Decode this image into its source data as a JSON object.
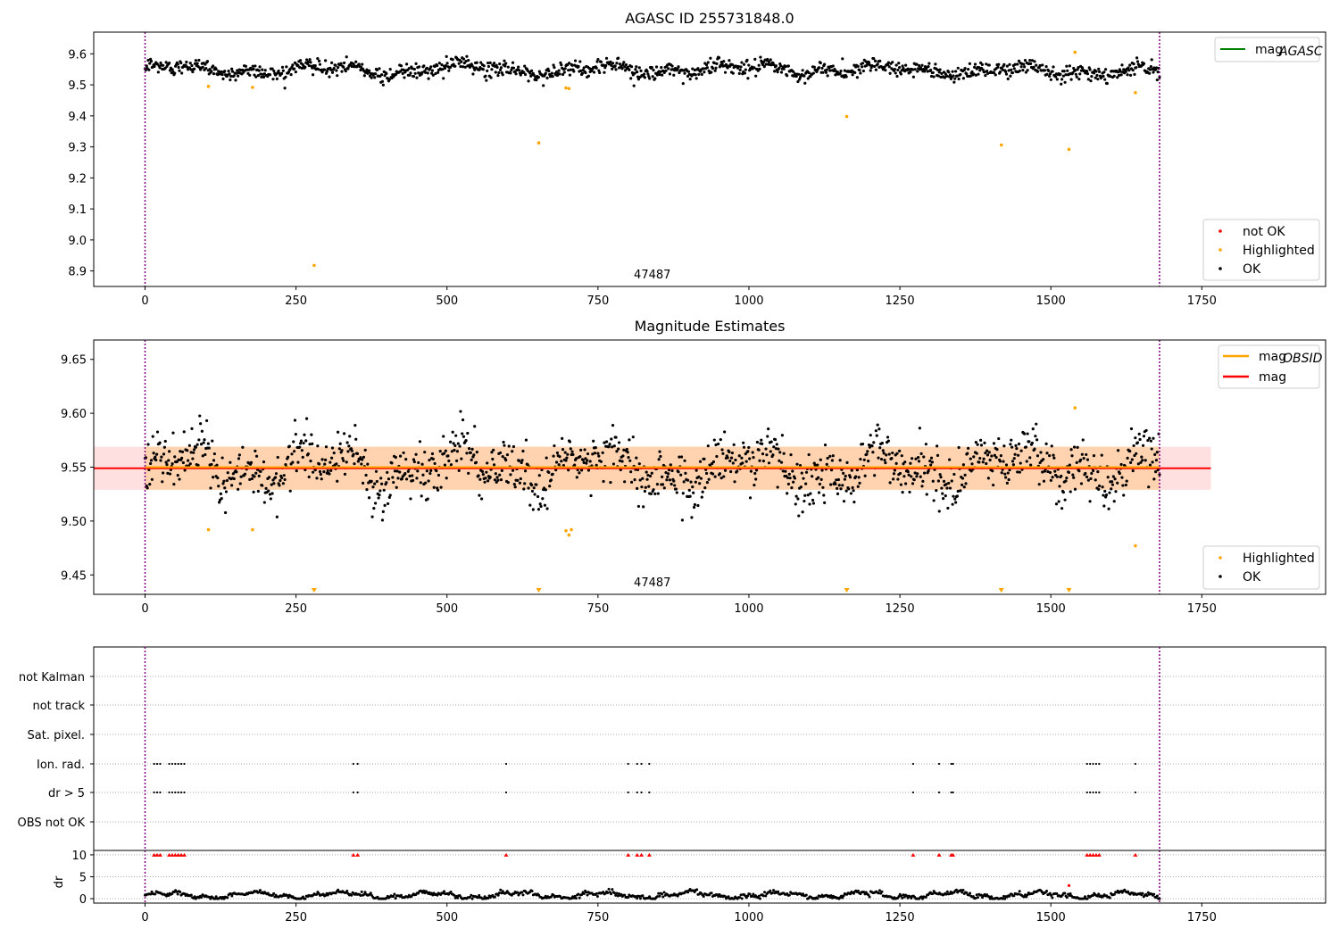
{
  "chart_data": [
    {
      "type": "scatter",
      "title": "AGASC ID 255731848.0",
      "xlim": [
        -85,
        1955
      ],
      "ylim": [
        8.85,
        9.67
      ],
      "xticks": [
        "0",
        "250",
        "500",
        "750",
        "1000",
        "1250",
        "1500",
        "1750"
      ],
      "yticks": [
        "8.9",
        "9.0",
        "9.1",
        "9.2",
        "9.3",
        "9.4",
        "9.5",
        "9.6"
      ],
      "annotation": "47487",
      "vlines": [
        0,
        1680
      ],
      "ok_series": {
        "name": "OK",
        "color": "#000000",
        "x_range": [
          0,
          1680
        ],
        "baseline": 9.55
      },
      "highlighted": {
        "name": "Highlighted",
        "color": "#ffa500",
        "points": [
          [
            105,
            9.495
          ],
          [
            178,
            9.492
          ],
          [
            280,
            8.918
          ],
          [
            652,
            9.313
          ],
          [
            697,
            9.49
          ],
          [
            702,
            9.488
          ],
          [
            1162,
            9.398
          ],
          [
            1418,
            9.306
          ],
          [
            1530,
            9.292
          ],
          [
            1540,
            9.605
          ],
          [
            1640,
            9.475
          ]
        ]
      },
      "legend_top": {
        "label": "mag",
        "sub": "AGASC",
        "color": "#008000"
      },
      "legend_bottom": [
        {
          "label": "not OK",
          "color": "#ff0000"
        },
        {
          "label": "Highlighted",
          "color": "#ffa500"
        },
        {
          "label": "OK",
          "color": "#000000"
        }
      ]
    },
    {
      "type": "scatter",
      "title": "Magnitude Estimates",
      "xlim": [
        -85,
        1955
      ],
      "ylim": [
        9.432,
        9.668
      ],
      "xticks": [
        "0",
        "250",
        "500",
        "750",
        "1000",
        "1250",
        "1500",
        "1750"
      ],
      "yticks": [
        "9.45",
        "9.50",
        "9.55",
        "9.60",
        "9.65"
      ],
      "annotation": "47487",
      "vlines": [
        0,
        1680
      ],
      "mag": {
        "label": "mag",
        "value": 9.549,
        "color": "#ff0000",
        "band": [
          9.529,
          9.569
        ],
        "band_x": [
          -85,
          1765
        ]
      },
      "mag_obsid": {
        "label": "mag",
        "sub": "OBSID",
        "value": 9.55,
        "color": "#ffa500",
        "band": [
          9.529,
          9.569
        ],
        "band_x": [
          0,
          1680
        ]
      },
      "ok_series": {
        "name": "OK",
        "color": "#000000",
        "x_range": [
          0,
          1680
        ],
        "baseline": 9.55
      },
      "highlighted": {
        "name": "Highlighted",
        "color": "#ffa500",
        "points": [
          [
            105,
            9.492
          ],
          [
            178,
            9.492
          ],
          [
            697,
            9.491
          ],
          [
            702,
            9.487
          ],
          [
            706,
            9.492
          ],
          [
            1540,
            9.605
          ],
          [
            1640,
            9.477
          ]
        ],
        "clipped_markers": [
          280,
          652,
          1162,
          1418,
          1530
        ]
      },
      "legend_top": [
        {
          "label": "mag",
          "sub": "OBSID",
          "color": "#ffa500"
        },
        {
          "label": "mag",
          "color": "#ff0000"
        }
      ],
      "legend_bottom": [
        {
          "label": "Highlighted",
          "color": "#ffa500"
        },
        {
          "label": "OK",
          "color": "#000000"
        }
      ]
    },
    {
      "type": "scatter",
      "xlim": [
        -85,
        1955
      ],
      "xticks": [
        "0",
        "250",
        "500",
        "750",
        "1000",
        "1250",
        "1500",
        "1750"
      ],
      "flag_rows": [
        "not Kalman",
        "not track",
        "Sat. pixel.",
        "Ion. rad.",
        "dr > 5",
        "OBS not OK"
      ],
      "flag_times": [
        15,
        20,
        25,
        40,
        45,
        50,
        55,
        60,
        65,
        345,
        352,
        598,
        800,
        815,
        822,
        835,
        1272,
        1315,
        1335,
        1338,
        1560,
        1565,
        1570,
        1575,
        1580,
        1640
      ],
      "vlines": [
        0,
        1680
      ],
      "dr_axis": {
        "ylabel": "dr",
        "yticks": [
          "0",
          "5",
          "10"
        ],
        "ylim": [
          -1,
          11
        ],
        "clip_value": 10,
        "clip_color": "#ff0000",
        "outlier": [
          1530,
          3.0
        ]
      }
    }
  ]
}
